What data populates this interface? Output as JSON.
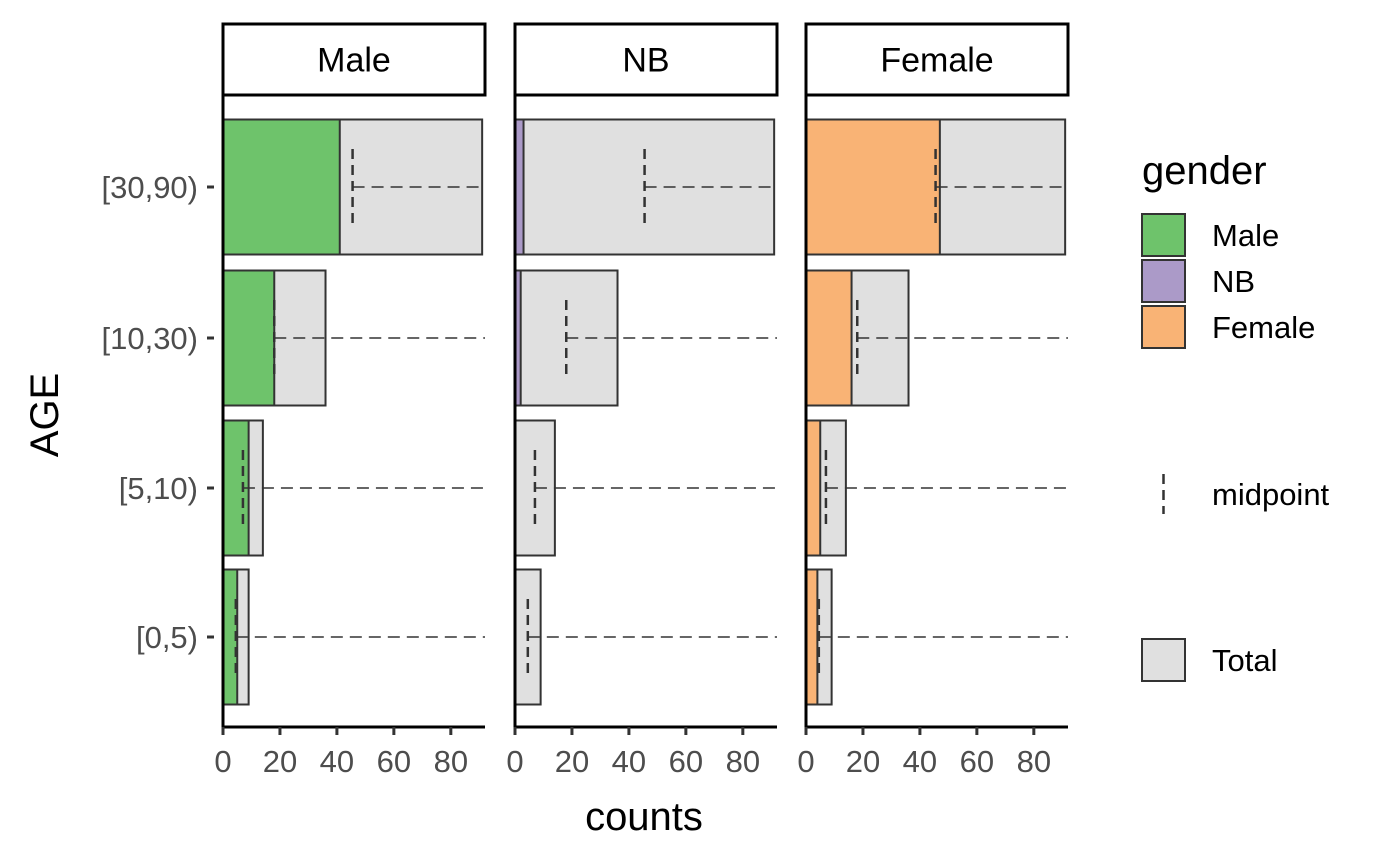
{
  "chart_data": {
    "type": "bar",
    "orientation": "horizontal",
    "facets": [
      "Male",
      "NB",
      "Female"
    ],
    "categories": [
      "[0,5)",
      "[5,10)",
      "[10,30)",
      "[30,90)"
    ],
    "xlabel": "counts",
    "ylabel": "AGE",
    "xlim": [
      0,
      92
    ],
    "xticks": [
      0,
      20,
      40,
      60,
      80
    ],
    "xtick_labels": [
      "0",
      "20",
      "40",
      "60",
      "80"
    ],
    "grid": false,
    "total": [
      9,
      14,
      36,
      91
    ],
    "midpoint": [
      4.5,
      7,
      18,
      45.5
    ],
    "series": [
      {
        "name": "Male",
        "color": "#6EC36B",
        "values": [
          5,
          9,
          18,
          41
        ]
      },
      {
        "name": "NB",
        "color": "#AB9AC8",
        "values": [
          0,
          0,
          2,
          3
        ]
      },
      {
        "name": "Female",
        "color": "#F9B375",
        "values": [
          4,
          5,
          16,
          47
        ]
      }
    ],
    "total_color": "#E0E0E0",
    "legend": {
      "title": "gender",
      "position": "right",
      "items": [
        "Male",
        "NB",
        "Female"
      ],
      "midpoint_label": "midpoint",
      "total_label": "Total"
    }
  }
}
